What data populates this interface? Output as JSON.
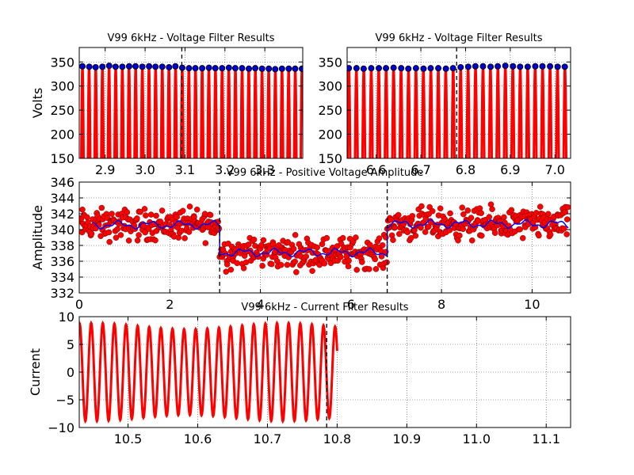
{
  "chart_data": [
    {
      "type": "line",
      "title": "V99 6kHz - Voltage Filter Results",
      "ylabel": "Volts",
      "xlabel": "",
      "xlim": [
        2.835,
        3.395
      ],
      "ylim": [
        150,
        380
      ],
      "xticks": [
        2.9,
        3.0,
        3.1,
        3.2,
        3.3
      ],
      "xtick_labels": [
        "2.9",
        "3.0",
        "3.1",
        "3.2",
        "3.3"
      ],
      "yticks": [
        150,
        200,
        250,
        300,
        350
      ],
      "ytick_labels": [
        "150",
        "200",
        "250",
        "300",
        "350"
      ],
      "grid": true,
      "vline": 3.092,
      "wave": {
        "color": "#ff0000",
        "freq": 60,
        "t0": 2.835,
        "t1": 3.395
      },
      "peaks": {
        "marker_color": "#0000cc",
        "x": [
          2.843,
          2.86,
          2.876,
          2.893,
          2.91,
          2.926,
          2.943,
          2.96,
          2.976,
          2.993,
          3.01,
          3.026,
          3.043,
          3.06,
          3.076,
          3.093,
          3.11,
          3.126,
          3.143,
          3.16,
          3.176,
          3.193,
          3.21,
          3.226,
          3.243,
          3.26,
          3.276,
          3.293,
          3.31,
          3.326,
          3.343,
          3.36,
          3.376,
          3.393
        ],
        "y": [
          341,
          340,
          339,
          340,
          342,
          340,
          340,
          341,
          341,
          340,
          341,
          340,
          340,
          339,
          341,
          338,
          337,
          337,
          337,
          338,
          337,
          337,
          338,
          337,
          337,
          336,
          337,
          336,
          336,
          335,
          336,
          336,
          336,
          336
        ]
      }
    },
    {
      "type": "line",
      "title": "V99 6kHz - Voltage Filter Results",
      "ylabel": "",
      "xlabel": "",
      "xlim": [
        6.535,
        7.035
      ],
      "ylim": [
        150,
        380
      ],
      "xticks": [
        6.6,
        6.7,
        6.8,
        6.9,
        7.0
      ],
      "xtick_labels": [
        "6.6",
        "6.7",
        "6.8",
        "6.9",
        "7.0"
      ],
      "yticks": [
        150,
        200,
        250,
        300,
        350
      ],
      "ytick_labels": [
        "150",
        "200",
        "250",
        "300",
        "350"
      ],
      "grid": true,
      "vline": 6.78,
      "wave": {
        "color": "#ff0000",
        "freq": 60,
        "t0": 6.535,
        "t1": 7.035
      },
      "peaks": {
        "marker_color": "#0000cc",
        "x": [
          6.539,
          6.556,
          6.572,
          6.589,
          6.606,
          6.622,
          6.639,
          6.656,
          6.672,
          6.689,
          6.706,
          6.722,
          6.739,
          6.756,
          6.772,
          6.789,
          6.806,
          6.822,
          6.839,
          6.856,
          6.872,
          6.889,
          6.906,
          6.922,
          6.939,
          6.956,
          6.972,
          6.989,
          7.006,
          7.022
        ],
        "y": [
          337,
          337,
          336,
          337,
          337,
          337,
          338,
          337,
          336,
          337,
          336,
          337,
          337,
          336,
          337,
          339,
          340,
          341,
          341,
          340,
          341,
          342,
          341,
          340,
          340,
          341,
          341,
          341,
          340,
          340
        ]
      }
    },
    {
      "type": "scatter",
      "title": "V99 6kHz - Positive Voltage Amplitude",
      "ylabel": "Amplitude",
      "xlabel": "",
      "xlim": [
        0,
        10.85
      ],
      "ylim": [
        332,
        346
      ],
      "xticks": [
        0,
        2,
        4,
        6,
        8,
        10
      ],
      "xtick_labels": [
        "0",
        "2",
        "4",
        "6",
        "8",
        "10"
      ],
      "yticks": [
        332,
        334,
        336,
        338,
        340,
        342,
        344,
        346
      ],
      "ytick_labels": [
        "332",
        "334",
        "336",
        "338",
        "340",
        "342",
        "344",
        "346"
      ],
      "grid": true,
      "vlines": [
        3.1,
        6.8
      ],
      "segments": [
        {
          "x0": 0.0,
          "x1": 3.1,
          "level": 340.6
        },
        {
          "x0": 3.1,
          "x1": 6.8,
          "level": 337.1
        },
        {
          "x0": 6.8,
          "x1": 10.8,
          "level": 340.7
        }
      ],
      "noise_amplitude": 1.2,
      "point_color": "#ff0000",
      "mean_color": "#0000ff",
      "points_per_unit": 60
    },
    {
      "type": "line",
      "title": "V99 6kHz - Current Filter Results",
      "ylabel": "Current",
      "xlabel": "",
      "xlim": [
        10.43,
        11.135
      ],
      "ylim": [
        -10,
        10
      ],
      "xticks": [
        10.5,
        10.6,
        10.7,
        10.8,
        10.9,
        11.0,
        11.1
      ],
      "xtick_labels": [
        "10.5",
        "10.6",
        "10.7",
        "10.8",
        "10.9",
        "11.0",
        "11.1"
      ],
      "yticks": [
        -10,
        -5,
        0,
        5,
        10
      ],
      "ytick_labels": [
        "−10",
        "−5",
        "0",
        "5",
        "10"
      ],
      "grid": true,
      "vline": 10.785,
      "wave": {
        "color": "#ff0000",
        "freq": 60,
        "t0": 10.43,
        "t1": 10.8,
        "amplitude": 8.3
      }
    }
  ]
}
